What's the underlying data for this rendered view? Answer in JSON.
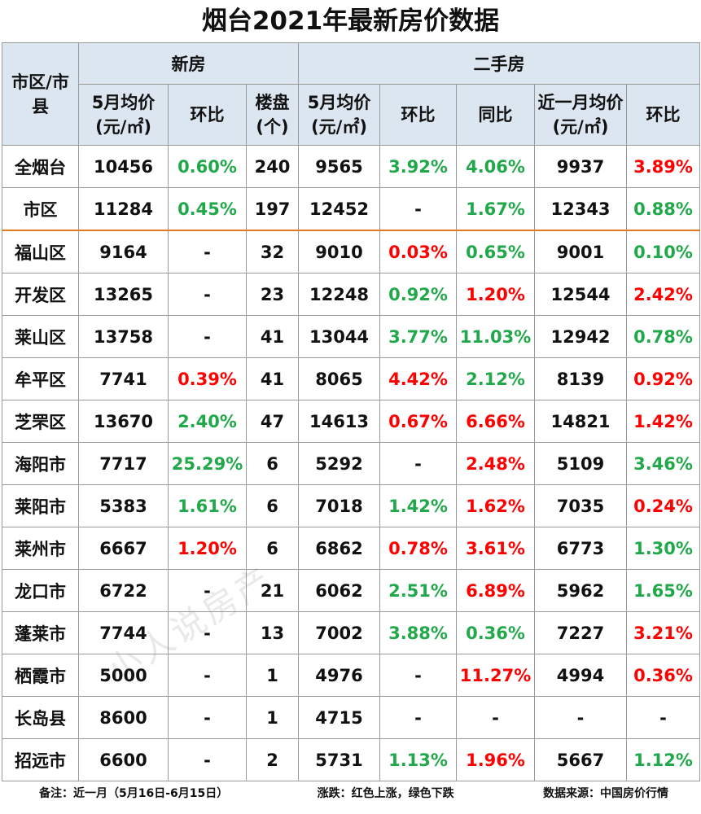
{
  "title": "烟台2021年最新房价数据",
  "headers": {
    "district": "市区/市县",
    "new_house": "新房",
    "second_hand": "二手房",
    "cols": [
      "5月均价(元/㎡)",
      "环比",
      "楼盘(个)",
      "5月均价(元/㎡)",
      "环比",
      "同比",
      "近一月均价(元/㎡)",
      "环比"
    ]
  },
  "rows": [
    {
      "name": "全烟台",
      "cells": [
        "10456",
        "0.60%",
        "240",
        "9565",
        "3.92%",
        "4.06%",
        "9937",
        "3.89%"
      ],
      "trend": [
        "n",
        "d",
        "n",
        "n",
        "d",
        "d",
        "n",
        "u"
      ]
    },
    {
      "name": "市区",
      "cells": [
        "11284",
        "0.45%",
        "197",
        "12452",
        "-",
        "1.67%",
        "12343",
        "0.88%"
      ],
      "trend": [
        "n",
        "d",
        "n",
        "n",
        "n",
        "d",
        "n",
        "d"
      ]
    },
    {
      "name": "福山区",
      "cells": [
        "9164",
        "-",
        "32",
        "9010",
        "0.03%",
        "0.65%",
        "9001",
        "0.10%"
      ],
      "trend": [
        "n",
        "n",
        "n",
        "n",
        "u",
        "d",
        "n",
        "d"
      ]
    },
    {
      "name": "开发区",
      "cells": [
        "13265",
        "-",
        "23",
        "12248",
        "0.92%",
        "1.20%",
        "12544",
        "2.42%"
      ],
      "trend": [
        "n",
        "n",
        "n",
        "n",
        "d",
        "u",
        "n",
        "u"
      ]
    },
    {
      "name": "莱山区",
      "cells": [
        "13758",
        "-",
        "41",
        "13044",
        "3.77%",
        "11.03%",
        "12942",
        "0.78%"
      ],
      "trend": [
        "n",
        "n",
        "n",
        "n",
        "d",
        "d",
        "n",
        "d"
      ]
    },
    {
      "name": "牟平区",
      "cells": [
        "7741",
        "0.39%",
        "41",
        "8065",
        "4.42%",
        "2.12%",
        "8139",
        "0.92%"
      ],
      "trend": [
        "n",
        "u",
        "n",
        "n",
        "u",
        "d",
        "n",
        "u"
      ]
    },
    {
      "name": "芝罘区",
      "cells": [
        "13670",
        "2.40%",
        "47",
        "14613",
        "0.67%",
        "6.66%",
        "14821",
        "1.42%"
      ],
      "trend": [
        "n",
        "d",
        "n",
        "n",
        "u",
        "u",
        "n",
        "u"
      ]
    },
    {
      "name": "海阳市",
      "cells": [
        "7717",
        "25.29%",
        "6",
        "5292",
        "-",
        "2.48%",
        "5109",
        "3.46%"
      ],
      "trend": [
        "n",
        "d",
        "n",
        "n",
        "n",
        "u",
        "n",
        "d"
      ]
    },
    {
      "name": "莱阳市",
      "cells": [
        "5383",
        "1.61%",
        "6",
        "7018",
        "1.42%",
        "1.62%",
        "7035",
        "0.24%"
      ],
      "trend": [
        "n",
        "d",
        "n",
        "n",
        "d",
        "u",
        "n",
        "u"
      ]
    },
    {
      "name": "莱州市",
      "cells": [
        "6667",
        "1.20%",
        "6",
        "6862",
        "0.78%",
        "3.61%",
        "6773",
        "1.30%"
      ],
      "trend": [
        "n",
        "u",
        "n",
        "n",
        "u",
        "u",
        "n",
        "d"
      ]
    },
    {
      "name": "龙口市",
      "cells": [
        "6722",
        "-",
        "21",
        "6062",
        "2.51%",
        "6.89%",
        "5962",
        "1.65%"
      ],
      "trend": [
        "n",
        "n",
        "n",
        "n",
        "d",
        "u",
        "n",
        "d"
      ]
    },
    {
      "name": "蓬莱市",
      "cells": [
        "7744",
        "-",
        "13",
        "7002",
        "3.88%",
        "0.36%",
        "7227",
        "3.21%"
      ],
      "trend": [
        "n",
        "n",
        "n",
        "n",
        "d",
        "d",
        "n",
        "u"
      ]
    },
    {
      "name": "栖霞市",
      "cells": [
        "5000",
        "-",
        "1",
        "4976",
        "-",
        "11.27%",
        "4994",
        "0.36%"
      ],
      "trend": [
        "n",
        "n",
        "n",
        "n",
        "n",
        "u",
        "n",
        "u"
      ]
    },
    {
      "name": "长岛县",
      "cells": [
        "8600",
        "-",
        "1",
        "4715",
        "-",
        "-",
        "-",
        "-"
      ],
      "trend": [
        "n",
        "n",
        "n",
        "n",
        "n",
        "n",
        "n",
        "n"
      ]
    },
    {
      "name": "招远市",
      "cells": [
        "6600",
        "-",
        "2",
        "5731",
        "1.13%",
        "1.96%",
        "5667",
        "1.12%"
      ],
      "trend": [
        "n",
        "n",
        "n",
        "n",
        "d",
        "u",
        "n",
        "d"
      ]
    }
  ],
  "colors": {
    "up": "#ff0000",
    "down": "#21a84a",
    "header_bg": "#dce6f1",
    "divider": "#e07a1f"
  },
  "footer": {
    "note": "备注：近一月（5月16日-6月15日）",
    "legend": "涨跌：红色上涨，绿色下跌",
    "source": "数据来源：中国房价行情"
  },
  "watermark": "小人说房产"
}
